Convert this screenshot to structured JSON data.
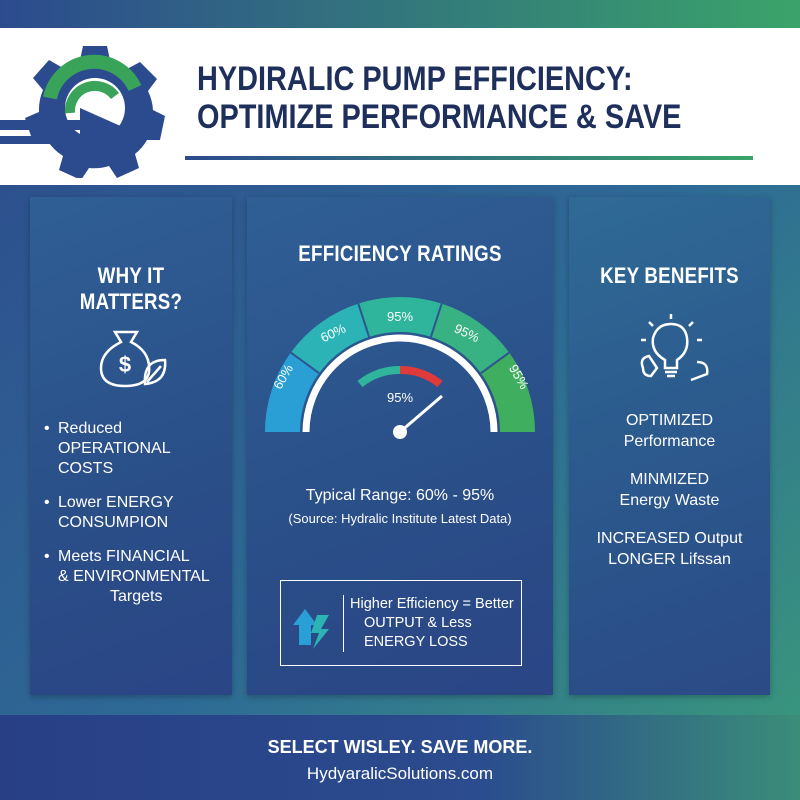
{
  "header": {
    "title_lines": [
      "HYDIRALIC PUMP EFFICIENCY:",
      "OPTIMIZE PERFORMANCE & SAVE"
    ]
  },
  "left_panel": {
    "title": "WHY IT MATTERS?",
    "bullets": [
      [
        "Reduced OPERATIONAL",
        "COSTS"
      ],
      [
        "Lower ENERGY",
        "CONSUMPION"
      ],
      [
        "Meets FINANCIAL",
        "& ENVIRONMENTAL",
        "Targets"
      ]
    ]
  },
  "middle_panel": {
    "title": "EFFICIENCY RATINGS",
    "gauge_labels": [
      "60%",
      "60%",
      "95%",
      "95%",
      "95%"
    ],
    "gauge_center_label": "95%",
    "typical_range": "Typical Range: 60% - 95%",
    "source": "(Source: Hydralic Institute Latest Data)",
    "callout_lines": [
      "Higher Efficiency = Better",
      "OUTPUT & Less",
      "ENERGY LOSS"
    ]
  },
  "right_panel": {
    "title": "KEY BENEFITS",
    "items": [
      [
        "OPTIMIZED",
        "Performance"
      ],
      [
        "MINMIZED",
        "Energy Waste"
      ],
      [
        "INCREASED Output",
        "LONGER Lifssan"
      ]
    ]
  },
  "footer": {
    "tagline": "SELECT WISLEY. SAVE MORE.",
    "website": "HydyaralicSolutions.com"
  }
}
